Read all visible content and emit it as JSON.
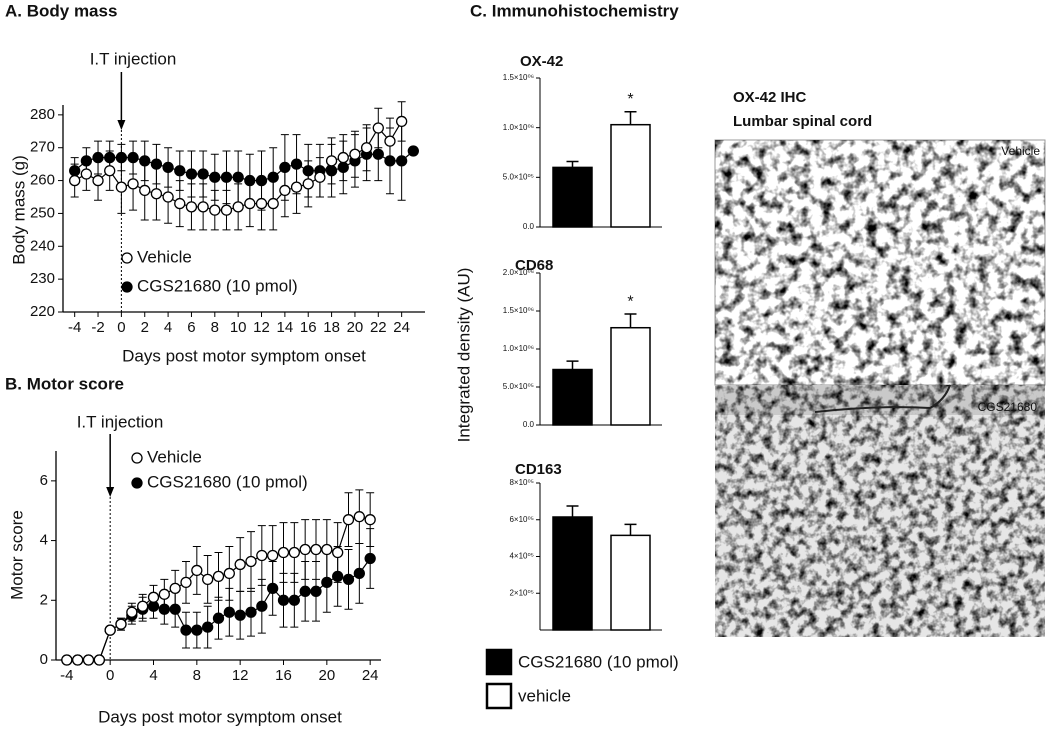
{
  "chart_data": [
    {
      "type": "line",
      "title": "A. Body mass",
      "xlabel": "Days post motor symptom onset",
      "ylabel": "Body mass (g)",
      "x": [
        -4,
        -3,
        -2,
        -1,
        0,
        1,
        2,
        3,
        4,
        5,
        6,
        7,
        8,
        9,
        10,
        11,
        12,
        13,
        14,
        15,
        16,
        17,
        18,
        19,
        20,
        21,
        22,
        23,
        24,
        25
      ],
      "series": [
        {
          "name": "Vehicle",
          "color": "#000000",
          "fill": "#ffffff",
          "values": [
            260,
            262,
            260,
            263,
            258,
            259,
            257,
            256,
            255,
            253,
            252,
            252,
            251,
            251,
            252,
            253,
            253,
            253,
            257,
            258,
            259,
            261,
            266,
            267,
            268,
            270,
            276,
            272,
            278,
            null
          ],
          "errors": [
            5,
            5,
            6,
            6,
            8,
            8,
            9,
            8,
            8,
            7,
            7,
            7,
            6,
            6,
            7,
            7,
            8,
            8,
            8,
            8,
            7,
            6,
            7,
            7,
            7,
            7,
            6,
            7,
            6,
            null
          ]
        },
        {
          "name": "CGS21680 (10 pmol)",
          "color": "#000000",
          "fill": "#000000",
          "values": [
            263,
            266,
            267,
            267,
            267,
            267,
            266,
            265,
            264,
            263,
            262,
            262,
            261,
            261,
            261,
            260,
            260,
            261,
            264,
            265,
            263,
            263,
            263,
            264,
            266,
            268,
            268,
            266,
            266,
            269
          ],
          "errors": [
            4,
            4,
            5,
            5,
            4,
            5,
            6,
            6,
            6,
            6,
            7,
            7,
            7,
            8,
            8,
            8,
            9,
            9,
            10,
            9,
            8,
            8,
            8,
            8,
            8,
            8,
            8,
            10,
            12,
            null
          ]
        }
      ],
      "xlim": [
        -5,
        26
      ],
      "xticks": [
        -4,
        -2,
        0,
        2,
        4,
        6,
        8,
        10,
        12,
        14,
        16,
        18,
        20,
        22,
        24
      ],
      "ylim": [
        220,
        283
      ],
      "yticks": [
        220,
        230,
        240,
        250,
        260,
        270,
        280
      ],
      "annotation": {
        "text": "I.T injection",
        "x": 0
      },
      "legend": "lower-left"
    },
    {
      "type": "line",
      "title": "B. Motor score",
      "xlabel": "Days post motor symptom onset",
      "ylabel": "Motor score",
      "x": [
        -4,
        -3,
        -2,
        -1,
        0,
        1,
        2,
        3,
        4,
        5,
        6,
        7,
        8,
        9,
        10,
        11,
        12,
        13,
        14,
        15,
        16,
        17,
        18,
        19,
        20,
        21,
        22,
        23,
        24
      ],
      "series": [
        {
          "name": "Vehicle",
          "color": "#000000",
          "fill": "#ffffff",
          "values": [
            0,
            0,
            0,
            0,
            1,
            1.2,
            1.6,
            1.8,
            2.1,
            2.2,
            2.4,
            2.6,
            3.0,
            2.7,
            2.8,
            2.9,
            3.2,
            3.3,
            3.5,
            3.5,
            3.6,
            3.6,
            3.7,
            3.7,
            3.7,
            3.6,
            4.7,
            4.8,
            4.7
          ],
          "errors": [
            0,
            0,
            0,
            0,
            0,
            0.2,
            0.3,
            0.4,
            0.4,
            0.5,
            0.6,
            0.7,
            0.8,
            0.8,
            0.8,
            0.9,
            0.9,
            1,
            1,
            1,
            1,
            1,
            1,
            1,
            1,
            1,
            0.9,
            0.9,
            0.9
          ]
        },
        {
          "name": "CGS21680 (10 pmol)",
          "color": "#000000",
          "fill": "#000000",
          "values": [
            0,
            0,
            0,
            0,
            1,
            1.2,
            1.5,
            1.7,
            1.8,
            1.7,
            1.7,
            1.0,
            1.0,
            1.1,
            1.4,
            1.6,
            1.5,
            1.6,
            1.8,
            2.4,
            2.0,
            2.0,
            2.3,
            2.3,
            2.6,
            2.8,
            2.7,
            2.9,
            3.4
          ],
          "errors": [
            0,
            0,
            0,
            0,
            0,
            0.2,
            0.3,
            0.4,
            0.4,
            0.5,
            0.6,
            0.6,
            0.6,
            0.7,
            0.7,
            0.8,
            0.8,
            0.8,
            0.9,
            0.9,
            0.9,
            0.9,
            1,
            1,
            1,
            1,
            1,
            1,
            1
          ]
        }
      ],
      "xlim": [
        -5,
        25
      ],
      "xticks": [
        -4,
        0,
        4,
        8,
        12,
        16,
        20,
        24
      ],
      "ylim": [
        0,
        7
      ],
      "yticks": [
        0,
        2,
        4,
        6
      ],
      "annotation": {
        "text": "I.T injection",
        "x": 0
      },
      "legend": "upper-left"
    },
    {
      "type": "bar",
      "title": "C. Immunohistochemistry",
      "ylabel": "Integrated density (AU)",
      "series": [
        {
          "name": "CGS21680 (10 pmol)",
          "color": "#000000"
        },
        {
          "name": "vehicle",
          "color": "#ffffff"
        }
      ],
      "panels": [
        {
          "title": "OX-42",
          "values": [
            600000,
            1030000
          ],
          "errors": [
            60000,
            130000
          ],
          "significance": [
            null,
            "*"
          ],
          "ylim": [
            0,
            1500000
          ],
          "yticks": [
            {
              "value": 0,
              "label": "0.0"
            },
            {
              "value": 500000,
              "label": "5.0×10⁰⁵"
            },
            {
              "value": 1000000,
              "label": "1.0×10⁰⁶"
            },
            {
              "value": 1500000,
              "label": "1.5×10⁰⁶"
            }
          ]
        },
        {
          "title": "CD68",
          "values": [
            730000,
            1280000
          ],
          "errors": [
            110000,
            180000
          ],
          "significance": [
            null,
            "*"
          ],
          "ylim": [
            0,
            2000000
          ],
          "yticks": [
            {
              "value": 0,
              "label": "0.0"
            },
            {
              "value": 500000,
              "label": "5.0×10⁰⁵"
            },
            {
              "value": 1000000,
              "label": "1.0×10⁰⁶"
            },
            {
              "value": 1500000,
              "label": "1.5×10⁰⁶"
            },
            {
              "value": 2000000,
              "label": "2.0×10⁰⁶"
            }
          ]
        },
        {
          "title": "CD163",
          "values": [
            615000,
            515000
          ],
          "errors": [
            60000,
            60000
          ],
          "significance": [
            null,
            null
          ],
          "ylim": [
            0,
            800000
          ],
          "yticks": [
            {
              "value": 200000,
              "label": "2×10⁰⁵"
            },
            {
              "value": 400000,
              "label": "4×10⁰⁵"
            },
            {
              "value": 600000,
              "label": "6×10⁰⁵"
            },
            {
              "value": 800000,
              "label": "8×10⁰⁵"
            }
          ]
        }
      ],
      "legend": "bottom"
    }
  ],
  "micrograph": {
    "title": "OX-42 IHC",
    "subtitle": "Lumbar spinal cord",
    "panels": [
      "Vehicle",
      "CGS21680"
    ]
  }
}
